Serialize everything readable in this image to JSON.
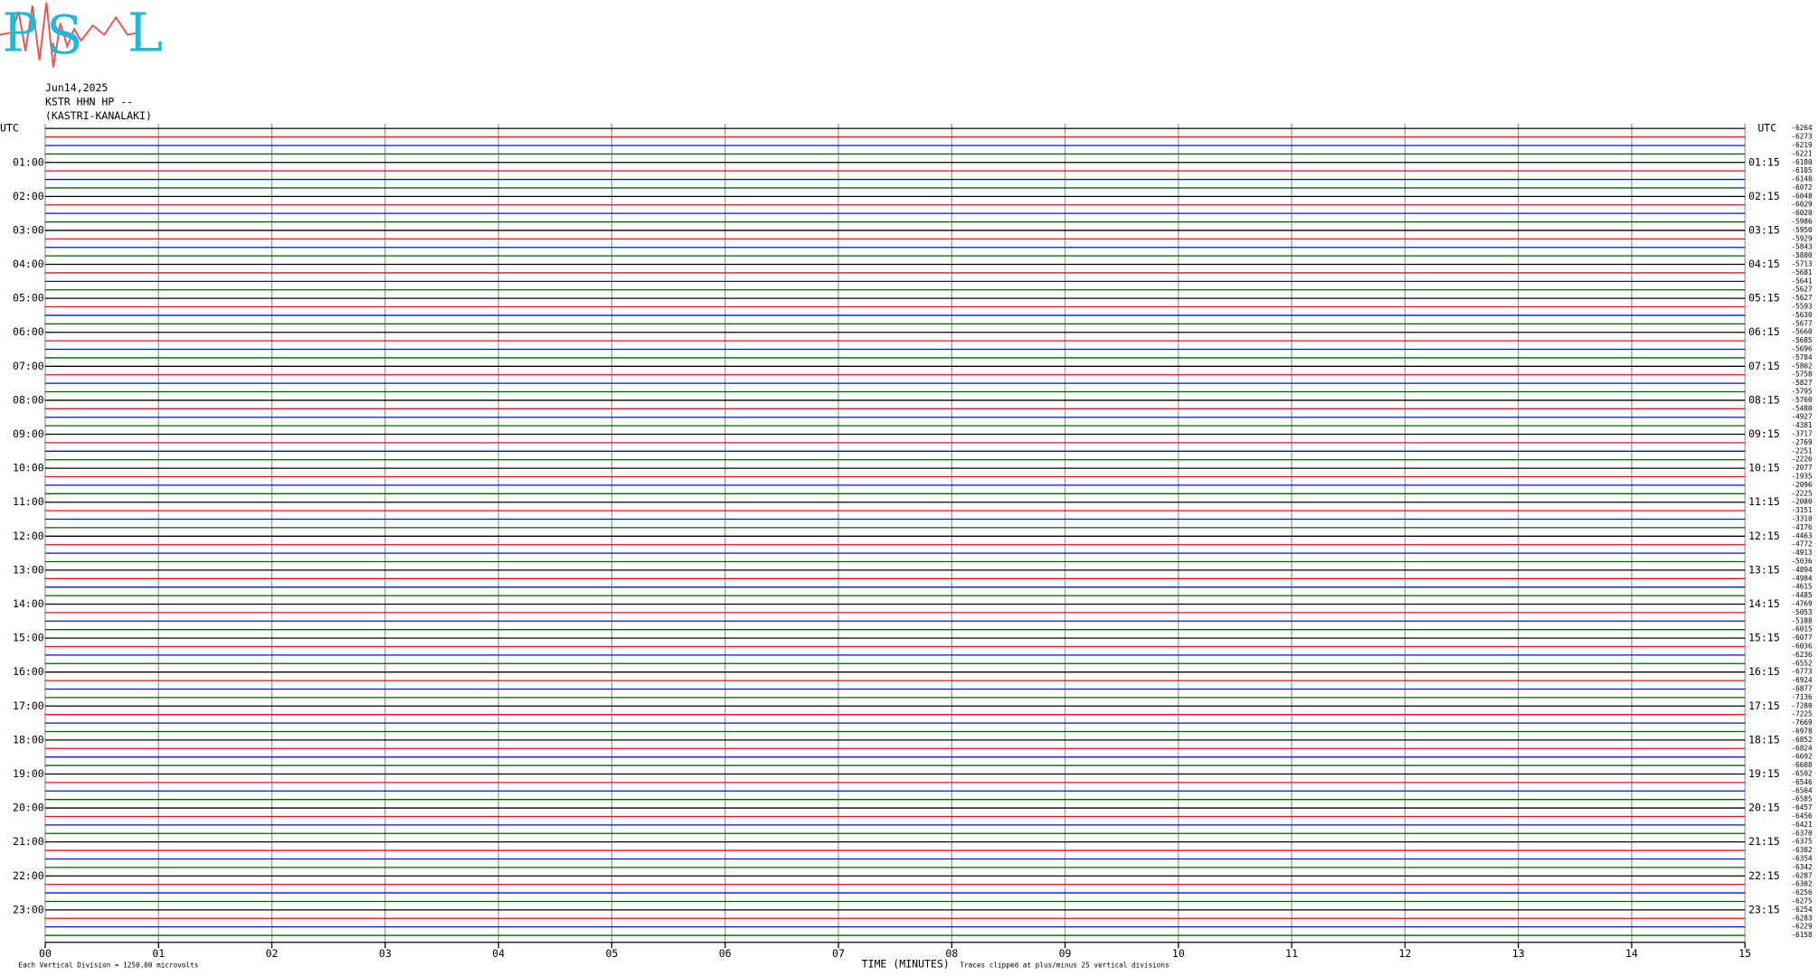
{
  "logo": {
    "letters": [
      "P",
      "S",
      "L"
    ]
  },
  "chart_data": {
    "type": "helicorder",
    "header": [
      "Jun14,2025",
      "KSTR HHN HP --",
      "(KASTRI-KANALAKI)"
    ],
    "xlabel": "TIME (MINUTES)",
    "footer_left": "Each Vertical Division = 1250.00 microvolts",
    "footer_right": "Traces clipped at plus/minus 25 vertical divisions",
    "xlim": [
      0,
      15
    ],
    "xticks": [
      {
        "value": 0,
        "label": "00"
      },
      {
        "value": 1,
        "label": "01"
      },
      {
        "value": 2,
        "label": "02"
      },
      {
        "value": 3,
        "label": "03"
      },
      {
        "value": 4,
        "label": "04"
      },
      {
        "value": 5,
        "label": "05"
      },
      {
        "value": 6,
        "label": "06"
      },
      {
        "value": 7,
        "label": "07"
      },
      {
        "value": 8,
        "label": "08"
      },
      {
        "value": 9,
        "label": "09"
      },
      {
        "value": 10,
        "label": "10"
      },
      {
        "value": 11,
        "label": "11"
      },
      {
        "value": 12,
        "label": "12"
      },
      {
        "value": 13,
        "label": "13"
      },
      {
        "value": 14,
        "label": "14"
      },
      {
        "value": 15,
        "label": "15"
      }
    ],
    "grid": true,
    "trace_colors": [
      "#000000",
      "#e01010",
      "#0010e0",
      "#006000"
    ],
    "left_labels": [
      "UTC",
      "01:00",
      "02:00",
      "03:00",
      "04:00",
      "05:00",
      "06:00",
      "07:00",
      "08:00",
      "09:00",
      "10:00",
      "11:00",
      "12:00",
      "13:00",
      "14:00",
      "15:00",
      "16:00",
      "17:00",
      "18:00",
      "19:00",
      "20:00",
      "21:00",
      "22:00",
      "23:00"
    ],
    "right_labels": [
      "UTC",
      "01:15",
      "02:15",
      "03:15",
      "04:15",
      "05:15",
      "06:15",
      "07:15",
      "08:15",
      "09:15",
      "10:15",
      "11:15",
      "12:15",
      "13:15",
      "14:15",
      "15:15",
      "16:15",
      "17:15",
      "18:15",
      "19:15",
      "20:15",
      "21:15",
      "22:15",
      "23:15"
    ],
    "trace_values": [
      -6264,
      -6273,
      -6219,
      -6221,
      -6180,
      -6185,
      -6148,
      -6072,
      -6048,
      -6029,
      -6020,
      -5986,
      -5950,
      -5929,
      -5843,
      -5800,
      -5713,
      -5681,
      -5641,
      -5627,
      -5627,
      -5593,
      -5630,
      -5677,
      -5660,
      -5685,
      -5696,
      -5784,
      -5802,
      -5758,
      -5827,
      -5795,
      -5760,
      -5480,
      -4927,
      -4381,
      -3717,
      -2769,
      -2251,
      -2226,
      -2077,
      -1935,
      -2096,
      -2225,
      -2080,
      -3151,
      -3310,
      -4176,
      -4463,
      -4772,
      -4913,
      -5036,
      -4894,
      -4984,
      -4615,
      -4485,
      -4769,
      -5053,
      -5188,
      -6015,
      -6077,
      -6036,
      -6236,
      -6552,
      -6773,
      -6924,
      -6877,
      -7136,
      -7280,
      -7225,
      -7669,
      -6978,
      -6852,
      -6824,
      -6692,
      -6608,
      -6592,
      -6546,
      -6504,
      -6585,
      -6457,
      -6456,
      -6421,
      -6370,
      -6375,
      -6382,
      -6354,
      -6342,
      -6287,
      -6302,
      -6256,
      -6275,
      -6254,
      -6283,
      -6229,
      -6158
    ]
  }
}
